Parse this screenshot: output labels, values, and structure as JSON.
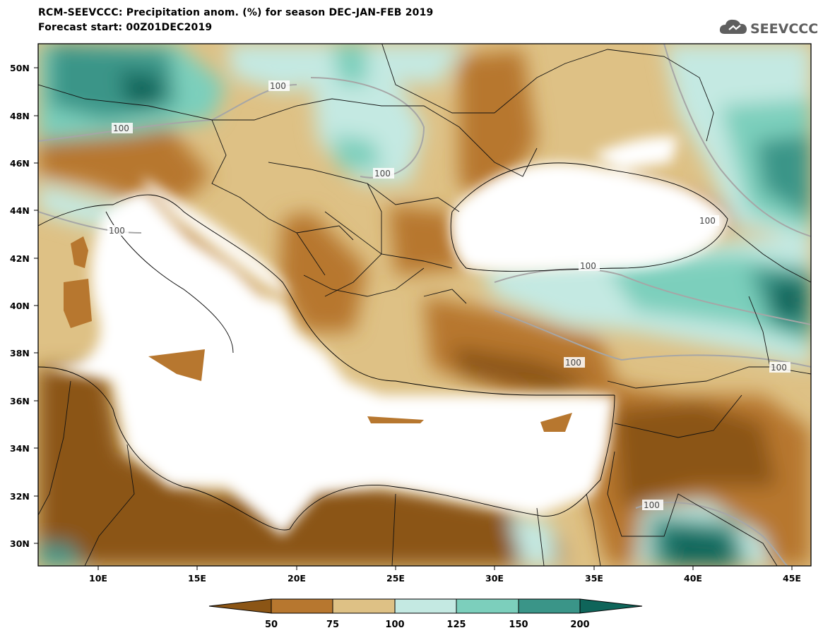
{
  "header": {
    "title": "RCM-SEEVCCC: Precipitation anom. (%) for season DEC-JAN-FEB 2019",
    "subtitle": "Forecast start: 00Z01DEC2019"
  },
  "logo": {
    "text": "SEEVCCC",
    "icon": "cloud-icon"
  },
  "map": {
    "lat_labels": [
      "50N",
      "48N",
      "46N",
      "44N",
      "42N",
      "40N",
      "38N",
      "36N",
      "34N",
      "32N",
      "30N"
    ],
    "lon_labels": [
      "10E",
      "15E",
      "20E",
      "25E",
      "30E",
      "35E",
      "40E",
      "45E"
    ],
    "contour_label": "100",
    "colors": {
      "c_lt50": "#8b5515",
      "c_50_75": "#b7772f",
      "c_75_100": "#dec185",
      "c_100_125": "#c4e9e2",
      "c_125_150": "#7ccfbc",
      "c_150_200": "#3a9588",
      "c_gt200": "#0f655a",
      "sea": "#ffffff",
      "contour": "#a6a6a6"
    }
  },
  "colorbar": {
    "labels": [
      "50",
      "75",
      "100",
      "125",
      "150",
      "200"
    ],
    "colors": [
      "#8b5515",
      "#b7772f",
      "#dec185",
      "#c4e9e2",
      "#7ccfbc",
      "#3a9588",
      "#0f655a"
    ]
  }
}
